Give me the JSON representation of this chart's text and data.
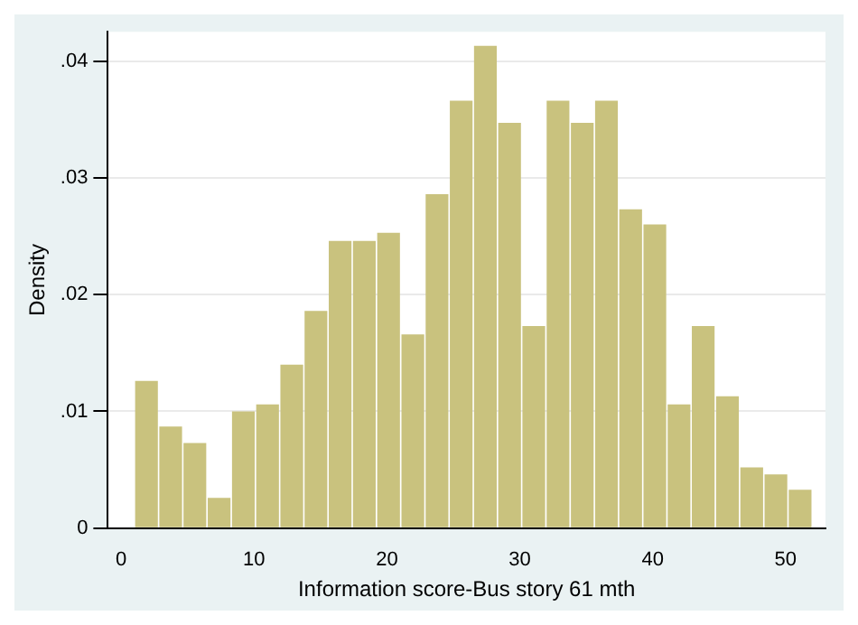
{
  "chart_data": {
    "type": "histogram",
    "xlabel": "Information score-Bus story 61 mth",
    "ylabel": "Density",
    "bins": [
      1,
      2.82,
      4.64,
      6.46,
      8.29,
      10.11,
      11.93,
      13.75,
      15.57,
      17.39,
      19.21,
      21.04,
      22.86,
      24.68,
      26.5,
      28.32,
      30.14,
      31.96,
      33.79,
      35.61,
      37.43,
      39.25,
      41.07,
      42.89,
      44.71,
      46.54,
      48.36,
      50.18,
      52
    ],
    "values": [
      0.0126,
      0.0087,
      0.0073,
      0.0026,
      0.01,
      0.0106,
      0.014,
      0.0186,
      0.0246,
      0.0246,
      0.0253,
      0.0166,
      0.0286,
      0.0366,
      0.0413,
      0.0347,
      0.0173,
      0.0366,
      0.0347,
      0.0366,
      0.0273,
      0.026,
      0.0106,
      0.0173,
      0.0113,
      0.0052,
      0.0046,
      0.0033
    ],
    "color": "#c9c27e",
    "xlim": [
      -1,
      53
    ],
    "xticks": [
      0,
      10,
      20,
      30,
      40,
      50
    ],
    "ylim": [
      0,
      0.0425
    ],
    "yticks": [
      {
        "value": 0,
        "label": "0"
      },
      {
        "value": 0.01,
        "label": ".01"
      },
      {
        "value": 0.02,
        "label": ".02"
      },
      {
        "value": 0.03,
        "label": ".03"
      },
      {
        "value": 0.04,
        "label": ".04"
      }
    ],
    "grid": "y"
  }
}
